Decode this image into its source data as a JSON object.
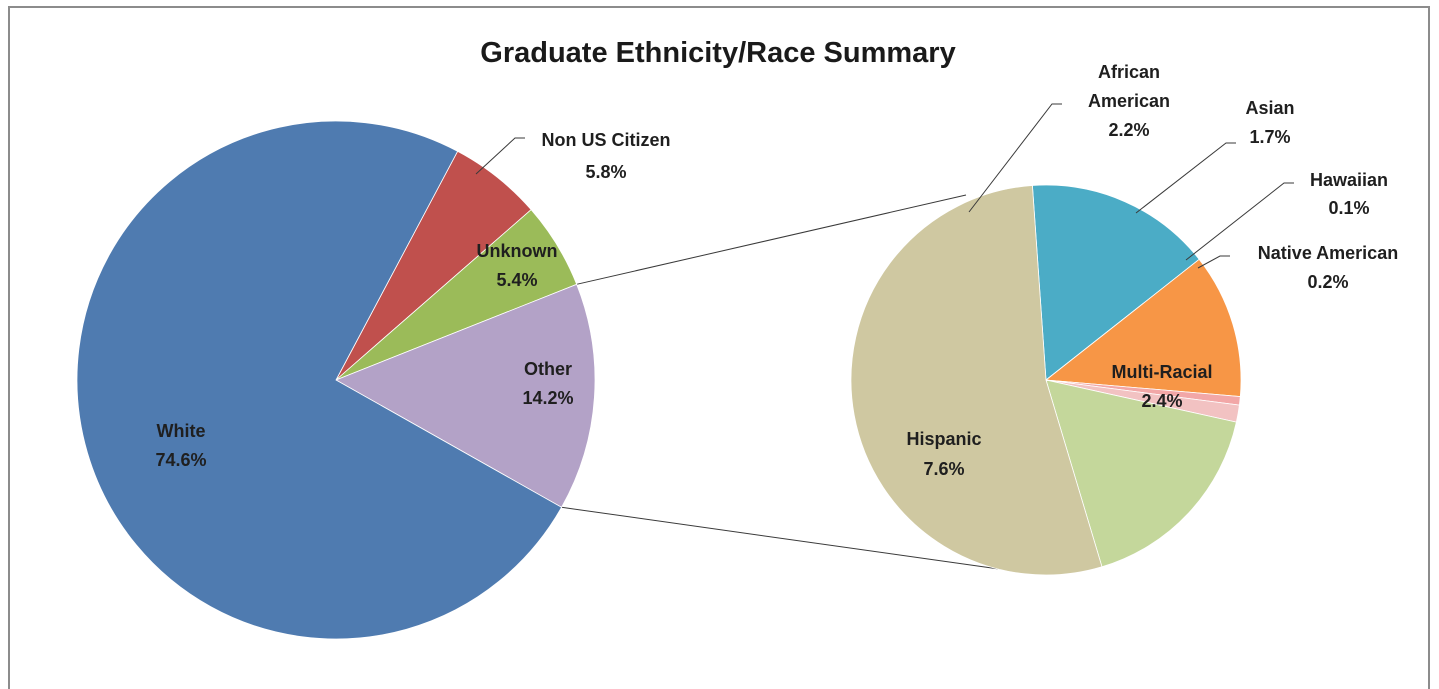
{
  "chart_data": {
    "type": "pie",
    "title": "Graduate Ethnicity/Race Summary",
    "main_pie": {
      "slices": [
        {
          "name": "Non US Citizen",
          "value": 5.8,
          "label": "5.8%",
          "color": "#c0504d"
        },
        {
          "name": "Unknown",
          "value": 5.4,
          "label": "5.4%",
          "color": "#9bbb59"
        },
        {
          "name": "Other",
          "value": 14.2,
          "label": "14.2%",
          "color": "#b3a2c7"
        },
        {
          "name": "White",
          "value": 74.6,
          "label": "74.6%",
          "color": "#4f7bb0"
        }
      ]
    },
    "breakout_pie": {
      "of": "Other",
      "slices": [
        {
          "name": "African American",
          "name_lines": [
            "African",
            "American"
          ],
          "value": 2.2,
          "label": "2.2%",
          "color": "#4bacc6"
        },
        {
          "name": "Asian",
          "value": 1.7,
          "label": "1.7%",
          "color": "#f79646"
        },
        {
          "name": "Hawaiian",
          "value": 0.1,
          "label": "0.1%",
          "color": "#f2a7a7"
        },
        {
          "name": "Native American",
          "value": 0.2,
          "label": "0.2%",
          "color": "#f2c2c2"
        },
        {
          "name": "Multi-Racial",
          "value": 2.4,
          "label": "2.4%",
          "color": "#c4d79b"
        },
        {
          "name": "Hispanic",
          "value": 7.6,
          "label": "7.6%",
          "color": "#cfc8a1"
        }
      ]
    }
  }
}
